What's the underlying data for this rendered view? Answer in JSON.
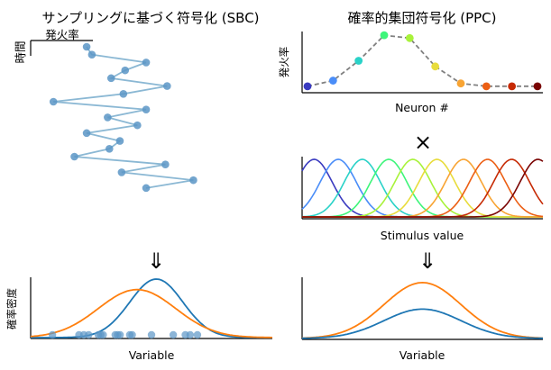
{
  "figure": {
    "titles": {
      "left": "サンプリングに基づく符号化 (SBC)",
      "right": "確率的集団符号化 (PPC)"
    },
    "arrows": {
      "left": "⇓",
      "right": "⇓"
    },
    "times_symbol": "×",
    "labels": {
      "sbc_top_x": "発火率",
      "sbc_top_y": "時間",
      "ppc_top_y": "発火率",
      "ppc_top_x": "Neuron #",
      "ppc_mid_x": "Stimulus value",
      "bottom_left_y": "確率密度",
      "bottom_left_x": "Variable",
      "bottom_right_x": "Variable"
    }
  },
  "chart_data": [
    {
      "id": "sbc-samples",
      "type": "line",
      "title": "",
      "xlabel": "発火率",
      "ylabel": "時間",
      "line_color": "#8bb8d4",
      "point_color": "#5b95c6",
      "xlim": [
        0,
        1
      ],
      "ylim": [
        0,
        21
      ],
      "points": [
        [
          0.32,
          21
        ],
        [
          0.35,
          20
        ],
        [
          0.66,
          19
        ],
        [
          0.54,
          18
        ],
        [
          0.46,
          17
        ],
        [
          0.78,
          16
        ],
        [
          0.53,
          15
        ],
        [
          0.13,
          14
        ],
        [
          0.66,
          13
        ],
        [
          0.44,
          12
        ],
        [
          0.61,
          11
        ],
        [
          0.32,
          10
        ],
        [
          0.51,
          9
        ],
        [
          0.45,
          8
        ],
        [
          0.25,
          7
        ],
        [
          0.77,
          6
        ],
        [
          0.52,
          5
        ],
        [
          0.93,
          4
        ],
        [
          0.66,
          3
        ]
      ]
    },
    {
      "id": "ppc-rates",
      "type": "scatter",
      "title": "",
      "xlabel": "Neuron #",
      "ylabel": "発火率",
      "line_color": "#808080",
      "x": [
        1,
        2,
        3,
        4,
        5,
        6,
        7,
        8,
        9,
        10
      ],
      "values": [
        0.05,
        0.15,
        0.5,
        0.95,
        0.9,
        0.4,
        0.1,
        0.05,
        0.05,
        0.05
      ],
      "colors": [
        "#3a3bc0",
        "#4a8df8",
        "#2ad2c8",
        "#3ef57a",
        "#a8f23a",
        "#e8dc3c",
        "#f8a433",
        "#ec5f14",
        "#c62a04",
        "#7a0403"
      ],
      "ylim": [
        0,
        1
      ]
    },
    {
      "id": "ppc-tuning",
      "type": "line",
      "title": "",
      "xlabel": "Stimulus value",
      "ylabel": "",
      "x_range": [
        0,
        1
      ],
      "ylim": [
        0,
        1
      ],
      "width": 0.075,
      "centers": [
        0.05,
        0.15,
        0.25,
        0.36,
        0.46,
        0.56,
        0.67,
        0.77,
        0.87,
        0.98
      ],
      "colors": [
        "#3a3bc0",
        "#4a8df8",
        "#2ad2c8",
        "#3ef57a",
        "#a8f23a",
        "#e8dc3c",
        "#f8a433",
        "#ec5f14",
        "#c62a04",
        "#7a0403"
      ]
    },
    {
      "id": "sbc-density",
      "type": "line",
      "title": "",
      "xlabel": "Variable",
      "ylabel": "確率密度",
      "xlim": [
        0,
        1
      ],
      "ylim": [
        0,
        1
      ],
      "series": [
        {
          "color": "#1f77b4",
          "mean": 0.52,
          "sd": 0.11,
          "peak": 1.0
        },
        {
          "color": "#ff7f0e",
          "mean": 0.44,
          "sd": 0.16,
          "peak": 0.82
        }
      ],
      "samples_color": "#5b95c6",
      "samples": [
        0.09,
        0.2,
        0.22,
        0.24,
        0.28,
        0.29,
        0.3,
        0.35,
        0.36,
        0.37,
        0.41,
        0.42,
        0.5,
        0.59,
        0.64,
        0.66,
        0.69
      ]
    },
    {
      "id": "ppc-density",
      "type": "line",
      "title": "",
      "xlabel": "Variable",
      "ylabel": "",
      "xlim": [
        0,
        1
      ],
      "ylim": [
        0,
        1
      ],
      "series": [
        {
          "color": "#ff7f0e",
          "mean": 0.5,
          "sd": 0.16,
          "peak": 0.97
        },
        {
          "color": "#1f77b4",
          "mean": 0.5,
          "sd": 0.16,
          "peak": 0.51
        }
      ]
    }
  ]
}
